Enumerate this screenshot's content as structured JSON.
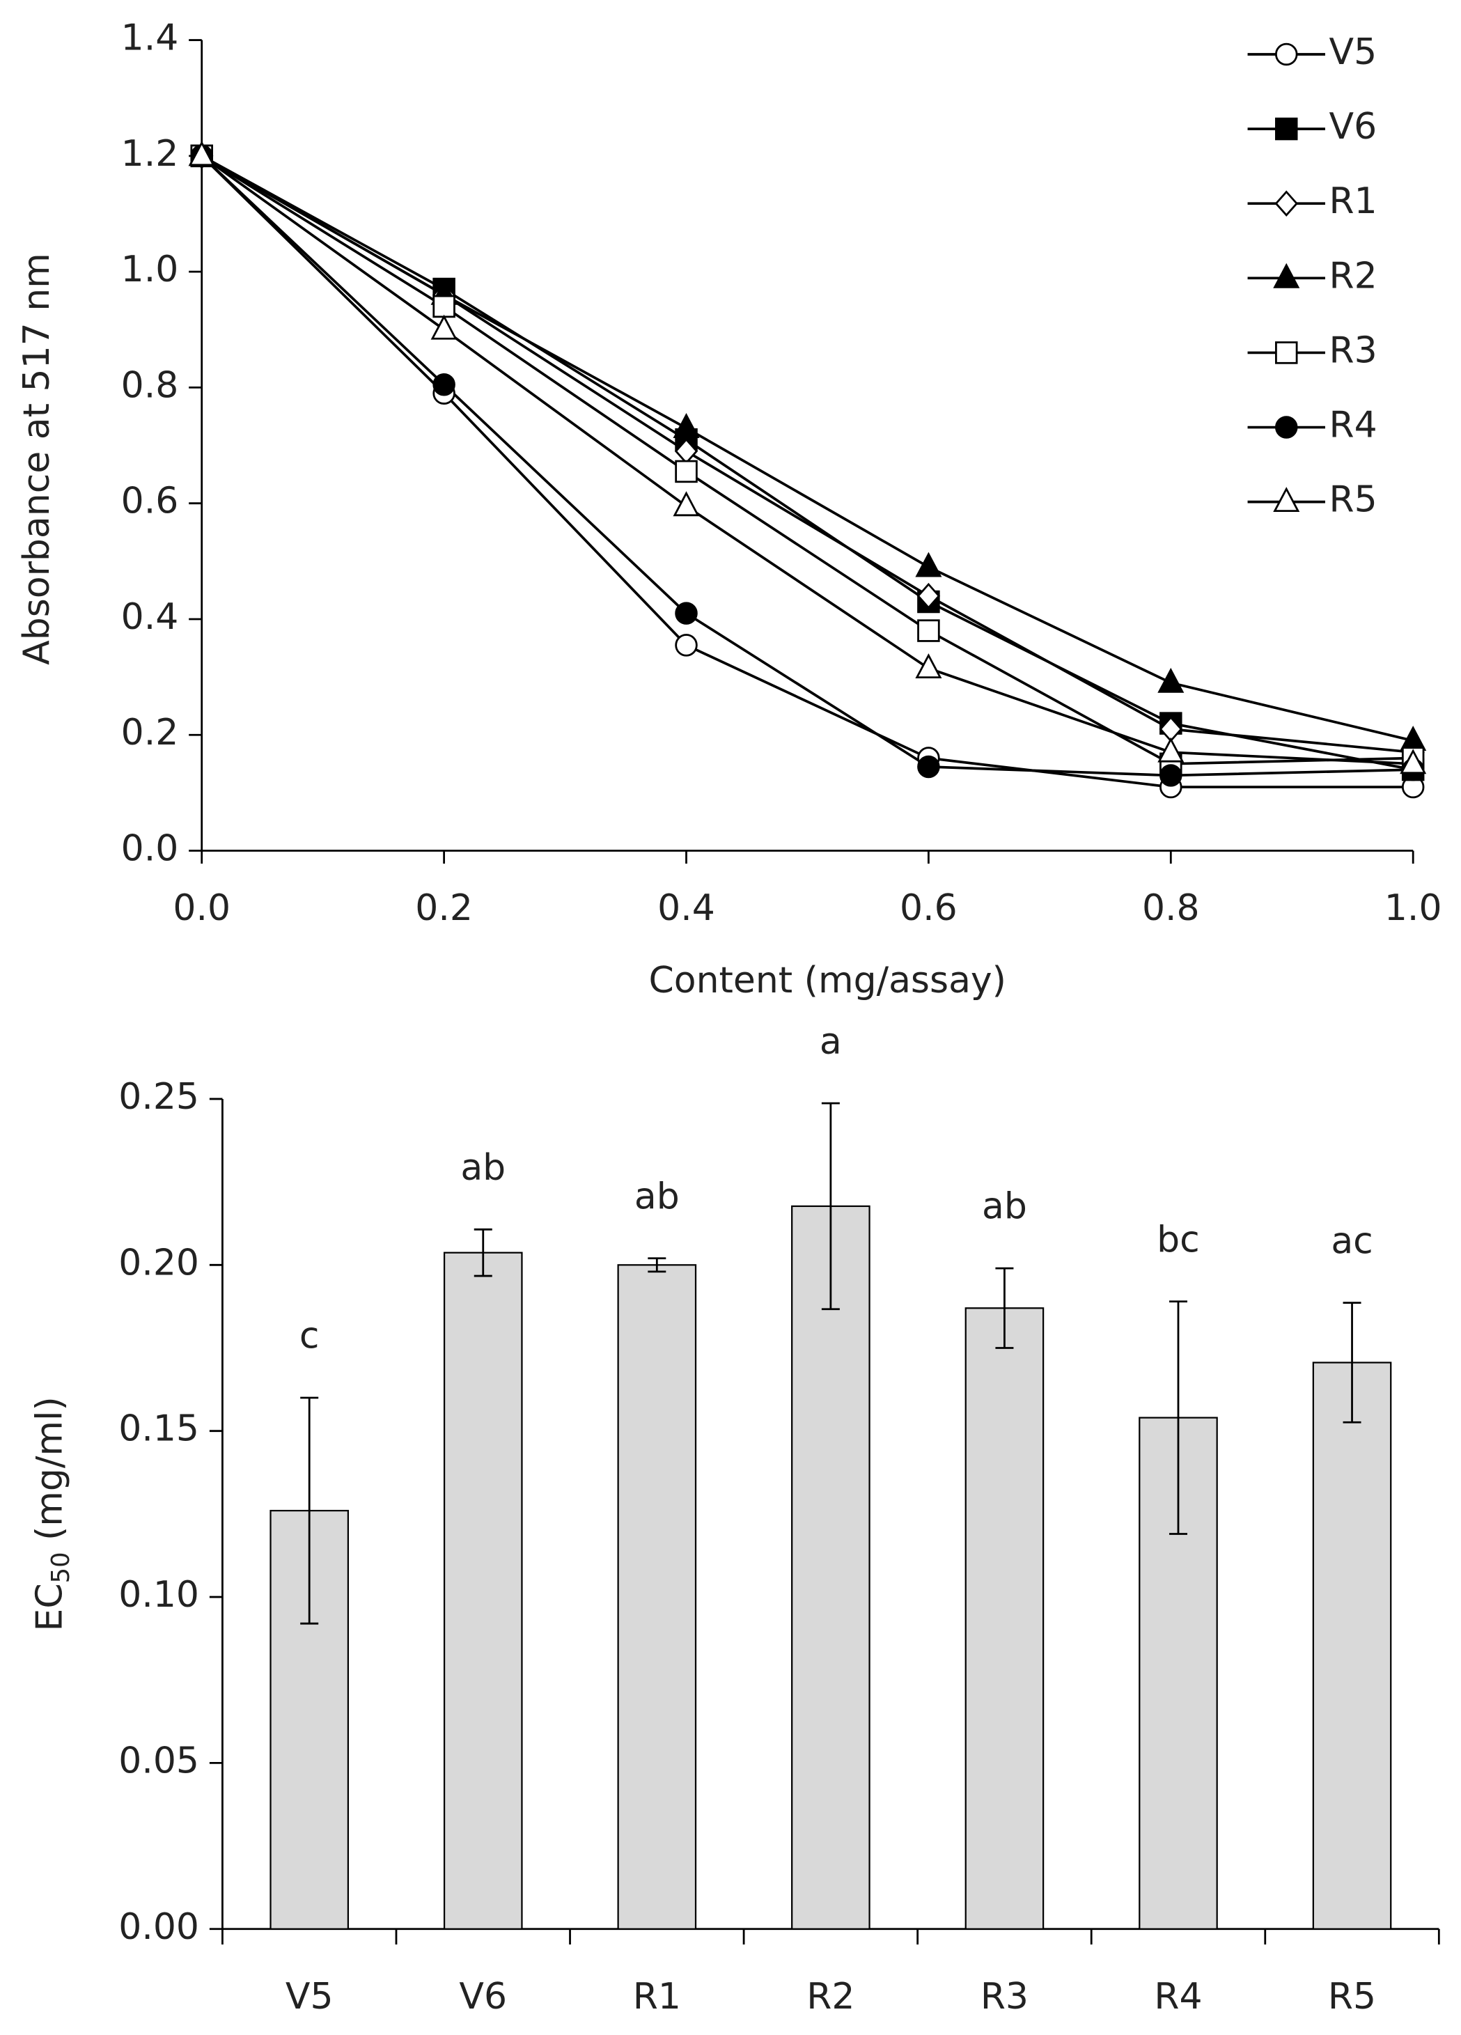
{
  "chart_data": [
    {
      "type": "line",
      "x_label": "Content (mg/assay)",
      "y_label": "Absorbance at 517 nm",
      "x": [
        0,
        0.2,
        0.4,
        0.6,
        0.8,
        1.0
      ],
      "xlim": [
        0,
        1.0
      ],
      "xticks": [
        {
          "value": 0,
          "label": "0.0"
        },
        0.2,
        0.4,
        0.6,
        0.8,
        {
          "value": 1.0,
          "label": "1.0"
        }
      ],
      "ylim": [
        0,
        1.4
      ],
      "yticks": [
        {
          "value": 0,
          "label": "0.0"
        },
        0.2,
        0.4,
        0.6,
        0.8,
        {
          "value": 1.0,
          "label": "1.0"
        },
        1.2,
        1.4
      ],
      "legend": "upper right",
      "series": [
        {
          "name": "V5",
          "color": "#000000",
          "marker": "circle",
          "filled": false,
          "values": [
            1.2,
            0.79,
            0.355,
            0.16,
            0.11,
            0.11
          ]
        },
        {
          "name": "V6",
          "color": "#000000",
          "marker": "square",
          "filled": true,
          "values": [
            1.2,
            0.97,
            0.71,
            0.43,
            0.22,
            0.14
          ]
        },
        {
          "name": "R1",
          "color": "#000000",
          "marker": "diamond",
          "filled": false,
          "values": [
            1.2,
            0.96,
            0.69,
            0.44,
            0.21,
            0.17
          ]
        },
        {
          "name": "R2",
          "color": "#000000",
          "marker": "triangle",
          "filled": true,
          "values": [
            1.2,
            0.96,
            0.73,
            0.49,
            0.29,
            0.19
          ]
        },
        {
          "name": "R3",
          "color": "#000000",
          "marker": "square",
          "filled": false,
          "values": [
            1.2,
            0.94,
            0.655,
            0.38,
            0.15,
            0.16
          ]
        },
        {
          "name": "R4",
          "color": "#000000",
          "marker": "circle",
          "filled": true,
          "values": [
            1.2,
            0.805,
            0.41,
            0.145,
            0.13,
            0.14
          ]
        },
        {
          "name": "R5",
          "color": "#000000",
          "marker": "triangle",
          "filled": false,
          "values": [
            1.2,
            0.9,
            0.595,
            0.315,
            0.17,
            0.15
          ]
        }
      ]
    },
    {
      "type": "bar",
      "y_label": {
        "main": "EC",
        "sub": "50",
        "rest": " (mg/ml)"
      },
      "categories": [
        "V5",
        "V6",
        "R1",
        "R2",
        "R3",
        "R4",
        "R5"
      ],
      "values": [
        0.126,
        0.2037,
        0.2,
        0.2177,
        0.187,
        0.154,
        0.1706
      ],
      "errors": [
        0.034,
        0.007,
        0.002,
        0.031,
        0.012,
        0.035,
        0.018
      ],
      "annotations": [
        "c",
        "ab",
        "ab",
        "a",
        "ab",
        "bc",
        "ac"
      ],
      "color": "#d9d9d9",
      "ylim": [
        0,
        0.25
      ],
      "yticks": [
        {
          "value": 0,
          "label": "0.00"
        },
        0.05,
        {
          "value": 0.1,
          "label": "0.10"
        },
        0.15,
        {
          "value": 0.2,
          "label": "0.20"
        },
        0.25
      ]
    }
  ]
}
